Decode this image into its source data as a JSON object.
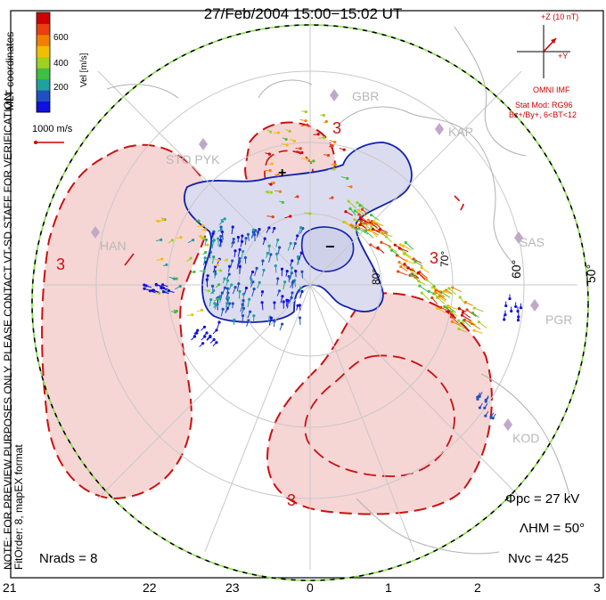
{
  "title": "27/Feb/2004 15:00−15:02 UT",
  "colorbar": {
    "label": "Vel [m/s]",
    "ticks": [
      "600",
      "400",
      "200"
    ],
    "colors": [
      "#1010e0",
      "#2050c0",
      "#20a0a0",
      "#40c040",
      "#a0d020",
      "#f0c000",
      "#f08000",
      "#e84010",
      "#d00000"
    ]
  },
  "coord_label": "MLT coordinates",
  "ref_vector": "1000 m/s",
  "imf": {
    "z_label": "+Z (10 nT)",
    "y_label": "+Y",
    "source": "OMNI IMF",
    "model": "Stat Mod: RG96",
    "condition": "Bz+/By+, 6<BT<12"
  },
  "sites": [
    "GBR",
    "STO PYK",
    "KAP",
    "HAN",
    "SAS",
    "PGR",
    "KOD"
  ],
  "lat_labels": [
    "80°",
    "70°",
    "60°",
    "50°"
  ],
  "contour_labels": [
    "+",
    "−",
    "3",
    "3",
    "3",
    "3"
  ],
  "mlt_labels": [
    "21",
    "22",
    "23",
    "0",
    "1",
    "2",
    "3"
  ],
  "stats": {
    "phi_pc": "Φpc = 27 kV",
    "lambda_hm": "ΛHM = 50°",
    "n_vc": "Nvc = 425",
    "n_rads": "Nrads = 8"
  },
  "notes": {
    "preview": "NOTE: FOR PREVIEW PURPOSES ONLY. PLEASE CONTACT VT-SD STAFF FOR VERIFICATION.",
    "fit": "FitOrder: 8, mapEX format"
  },
  "colors": {
    "positive_fill": "#f6d5d5",
    "positive_line": "#cc1010",
    "negative_fill": "#dcdcf0",
    "negative_line": "#1020b0",
    "grid": "#c8c8c8",
    "land": "#b0b0b0"
  }
}
